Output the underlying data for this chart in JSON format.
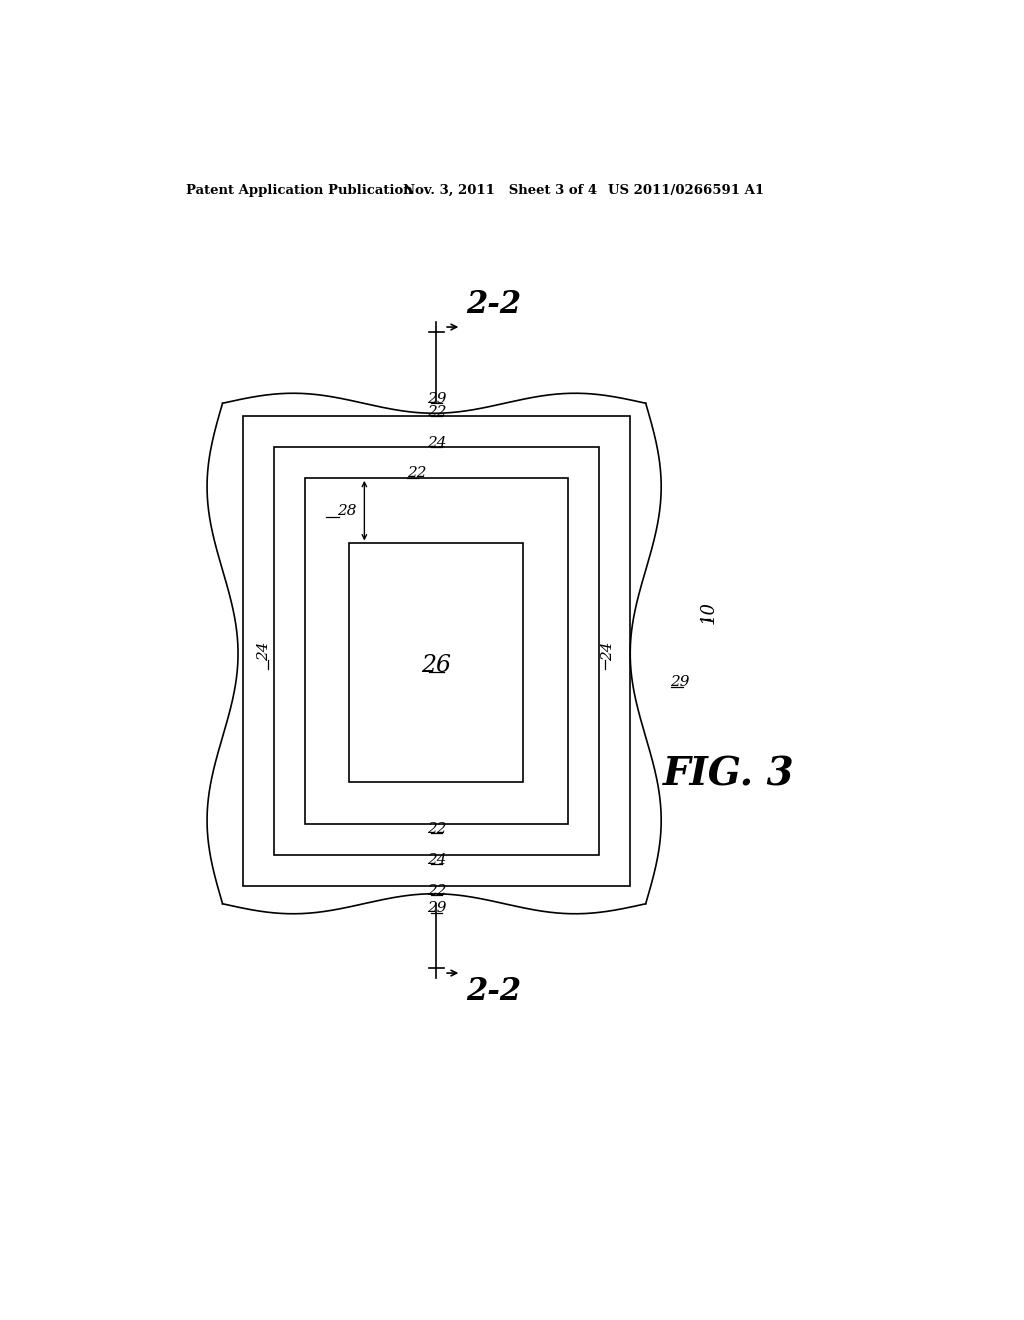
{
  "background_color": "#ffffff",
  "header_left": "Patent Application Publication",
  "header_mid": "Nov. 3, 2011   Sheet 3 of 4",
  "header_right": "US 2011/0266591 A1",
  "fig_label": "FIG. 3",
  "ref_10": "10",
  "ref_22": "22",
  "ref_24": "24",
  "ref_26": "26",
  "ref_28": "28",
  "ref_29": "29",
  "section_label": "2-2",
  "line_color": "#000000",
  "text_color": "#000000"
}
